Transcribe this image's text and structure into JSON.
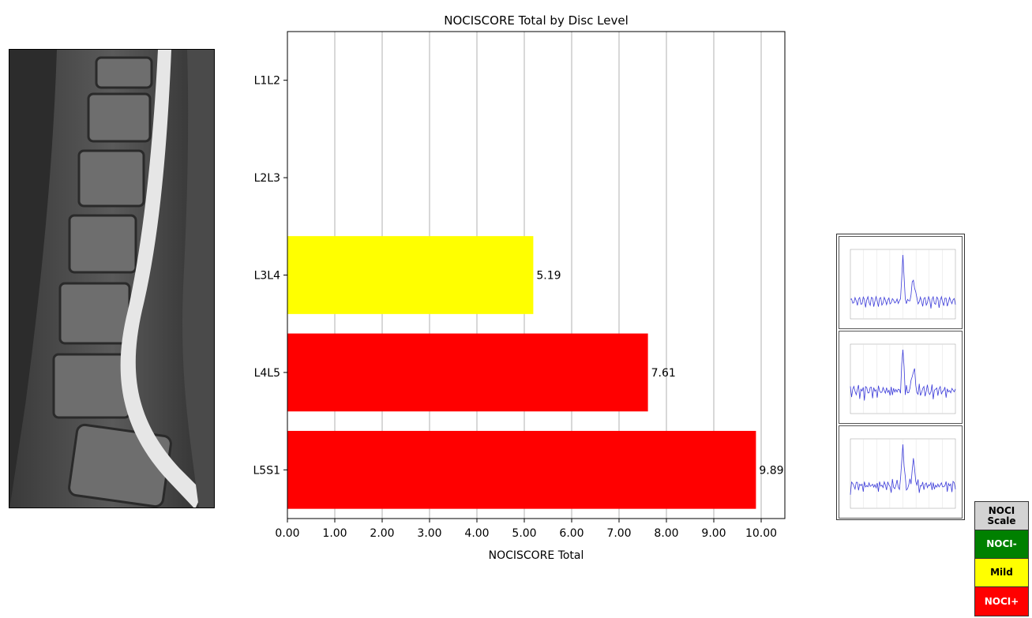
{
  "chart_data": {
    "type": "bar",
    "orientation": "horizontal",
    "title": "NOCISCORE Total by Disc Level",
    "xlabel": "NOCISCORE Total",
    "ylabel": "",
    "xlim": [
      0,
      10.5
    ],
    "xticks": [
      "0.00",
      "1.00",
      "2.00",
      "3.00",
      "4.00",
      "5.00",
      "6.00",
      "7.00",
      "8.00",
      "9.00",
      "10.00"
    ],
    "categories": [
      "L1L2",
      "L2L3",
      "L3L4",
      "L4L5",
      "L5S1"
    ],
    "values": [
      null,
      null,
      5.19,
      7.61,
      9.89
    ],
    "value_labels": [
      "",
      "",
      "5.19",
      "7.61",
      "9.89"
    ],
    "bar_colors": [
      "#ffffff",
      "#ffffff",
      "#ffff00",
      "#ff0000",
      "#ff0000"
    ],
    "grid": "vertical"
  },
  "scale_legend": {
    "items": [
      {
        "label": "NOCI\nScale",
        "color": "#d3d3d3",
        "text_color": "#000000"
      },
      {
        "label": "NOCI-",
        "color": "#008000",
        "text_color": "#ffffff"
      },
      {
        "label": "Mild",
        "color": "#ffff00",
        "text_color": "#000000"
      },
      {
        "label": "NOCI+",
        "color": "#ff0000",
        "text_color": "#ffffff"
      }
    ]
  },
  "spectra": [
    {
      "level": "L3L4",
      "color": "#3b3bd9"
    },
    {
      "level": "L4L5",
      "color": "#3b3bd9"
    },
    {
      "level": "L5S1",
      "color": "#3b3bd9"
    }
  ]
}
